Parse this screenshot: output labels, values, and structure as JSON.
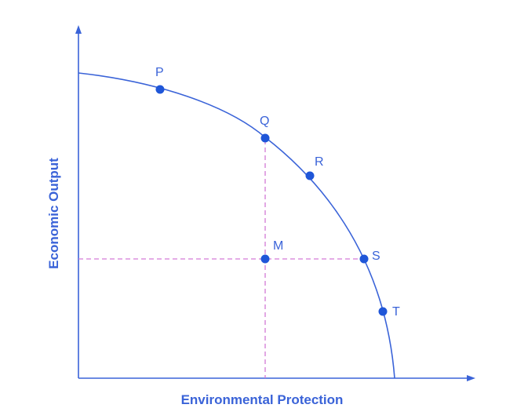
{
  "axes": {
    "x_label": "Environmental Protection",
    "y_label": "Economic Output"
  },
  "points": [
    {
      "id": "p",
      "label": "P"
    },
    {
      "id": "q",
      "label": "Q"
    },
    {
      "id": "r",
      "label": "R"
    },
    {
      "id": "s",
      "label": "S"
    },
    {
      "id": "t",
      "label": "T"
    },
    {
      "id": "m",
      "label": "M"
    }
  ],
  "colors": {
    "axis": "#3a63d8",
    "curve": "#3a63d8",
    "point": "#1f56d8",
    "guide": "#d37ad6",
    "label": "#3a63d8"
  }
}
